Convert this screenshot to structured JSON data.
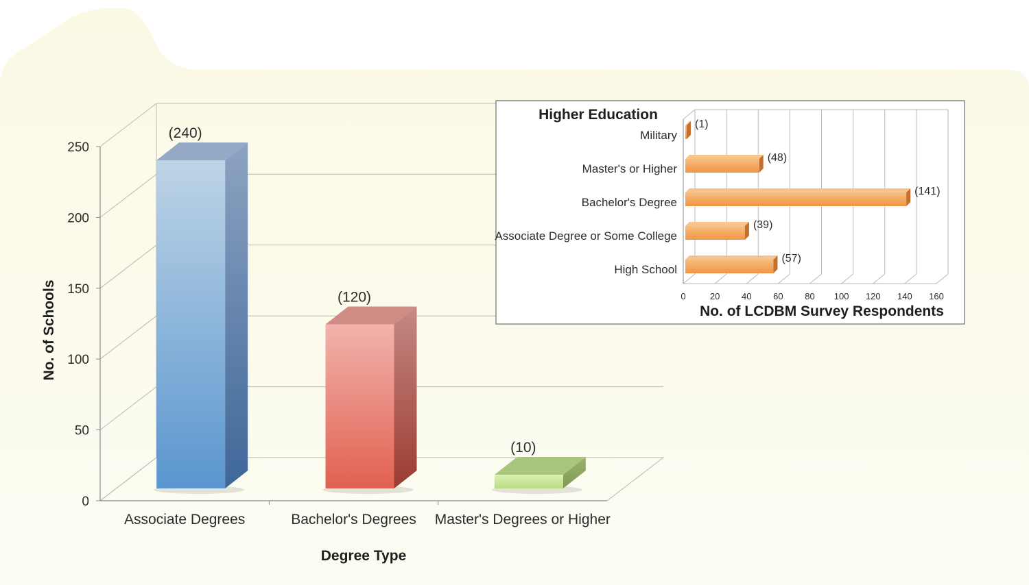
{
  "chart_data": [
    {
      "type": "bar",
      "categories": [
        "Associate Degrees",
        "Bachelor's Degrees",
        "Master's Degrees or Higher"
      ],
      "values": [
        240,
        120,
        10
      ],
      "data_labels": [
        "(240)",
        "(120)",
        "(10)"
      ],
      "colors": [
        "#79a9d6",
        "#ec8377",
        "#b9d98a"
      ],
      "title": "",
      "xlabel": "Degree Type",
      "ylabel": "No. of Schools",
      "ylim": [
        0,
        250
      ],
      "yticks": [
        0,
        50,
        100,
        150,
        200,
        250
      ],
      "grid": true,
      "three_d": true
    },
    {
      "type": "bar",
      "orientation": "horizontal",
      "title": "Higher Education",
      "categories": [
        "Military",
        "Master's or Higher",
        "Bachelor's Degree",
        "Associate Degree or Some College",
        "High School"
      ],
      "values": [
        1,
        48,
        141,
        39,
        57
      ],
      "data_labels": [
        "(1)",
        "(48)",
        "(141)",
        "(39)",
        "(57)"
      ],
      "color": "#f4a55b",
      "xlabel": "No. of LCDBM Survey Respondents",
      "ylabel": "",
      "xlim": [
        0,
        160
      ],
      "xticks": [
        0,
        20,
        40,
        60,
        80,
        100,
        120,
        140,
        160
      ],
      "grid": true,
      "three_d": true
    }
  ],
  "colors": {
    "background_panel": "#fdfcf0",
    "inset_background": "#ffffff",
    "grid": "#b9b9ad"
  }
}
